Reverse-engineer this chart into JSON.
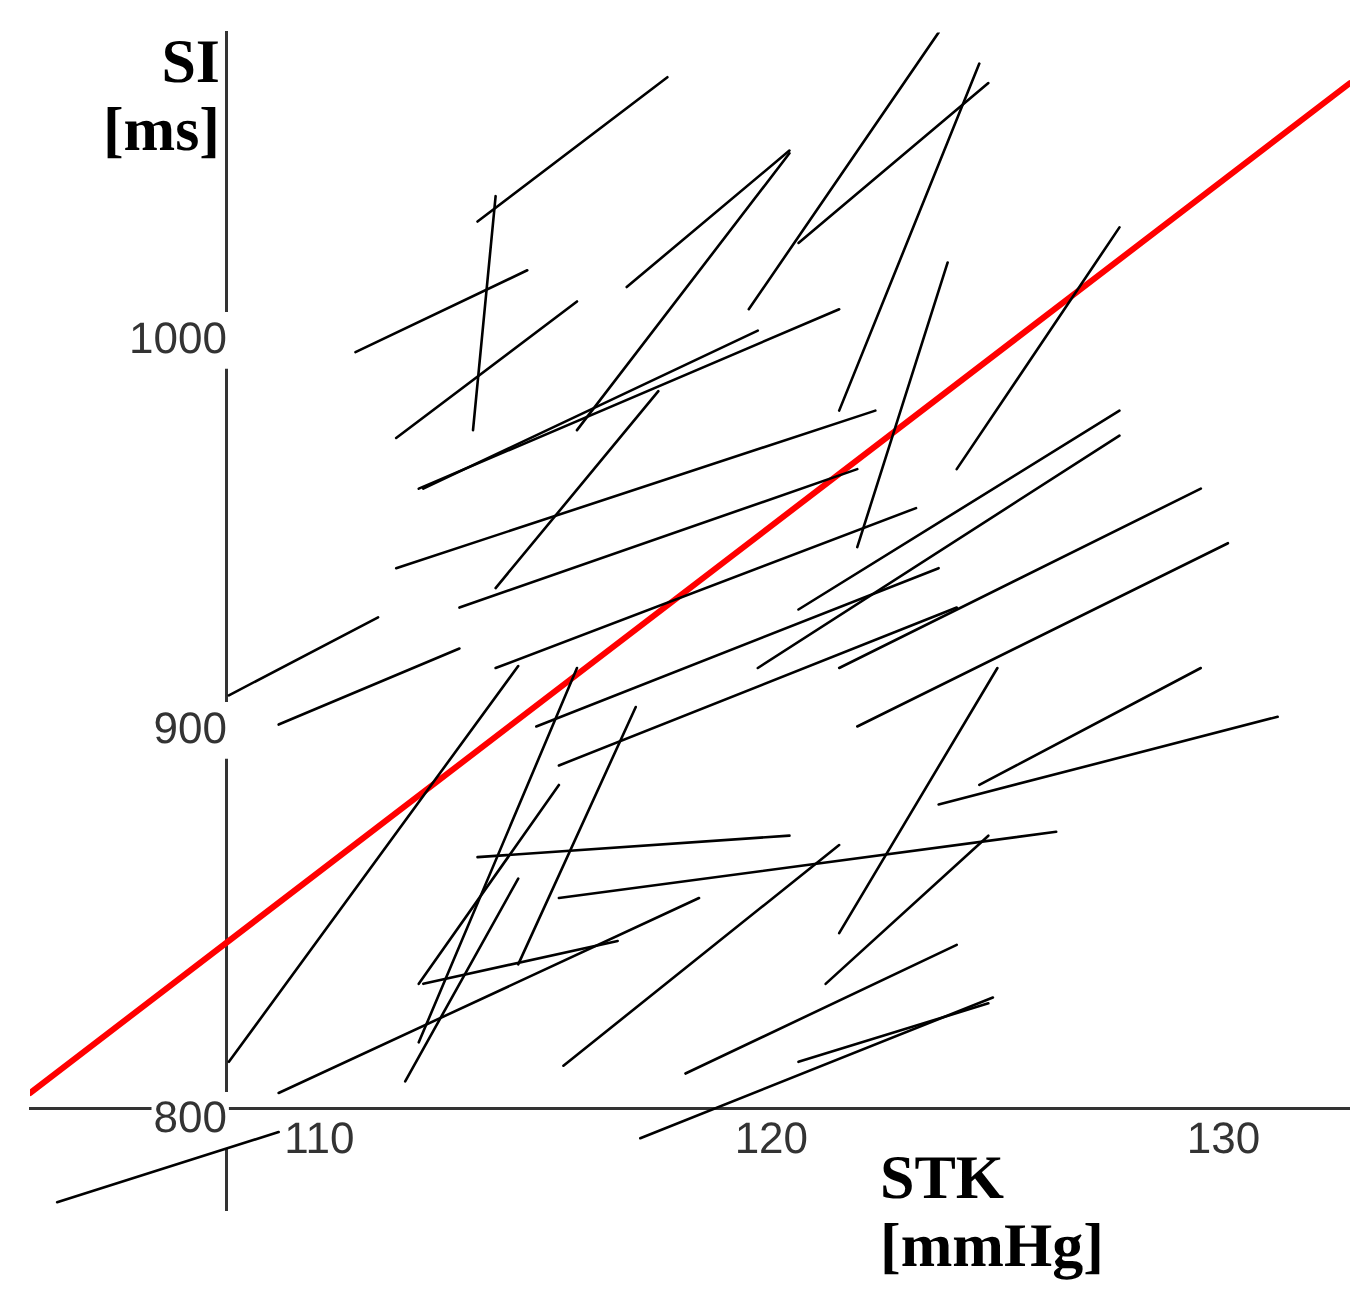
{
  "chart_data": {
    "type": "line",
    "xlabel": "STK [mmHg]",
    "ylabel": "SI [ms]",
    "xlim": [
      103.6,
      132.8
    ],
    "ylim": [
      777,
      1079
    ],
    "xticks": [
      110,
      120,
      130
    ],
    "yticks": [
      800,
      900,
      1000
    ],
    "grid": false,
    "legend": false,
    "marker": "none",
    "line_style": "solid",
    "series": [
      {
        "color": "#000000",
        "x": [
          113.5,
          117.7
        ],
        "values": [
          1030.5,
          1067.5
        ]
      },
      {
        "color": "#000000",
        "x": [
          110.8,
          114.6
        ],
        "values": [
          997,
          1018
        ]
      },
      {
        "color": "#000000",
        "x": [
          113.9,
          113.4
        ],
        "values": [
          1037,
          977
        ]
      },
      {
        "color": "#000000",
        "x": [
          123.7,
          119.5
        ],
        "values": [
          1079,
          1008
        ]
      },
      {
        "color": "#000000",
        "x": [
          124.6,
          121.5
        ],
        "values": [
          1071,
          982
        ]
      },
      {
        "color": "#000000",
        "x": [
          124.8,
          120.6
        ],
        "values": [
          1066,
          1025
        ]
      },
      {
        "color": "#000000",
        "x": [
          120.4,
          115.7
        ],
        "values": [
          1048,
          977
        ]
      },
      {
        "color": "#000000",
        "x": [
          127.7,
          124.1
        ],
        "values": [
          1029,
          967
        ]
      },
      {
        "color": "#000000",
        "x": [
          111.7,
          115.7
        ],
        "values": [
          975,
          1010
        ]
      },
      {
        "color": "#000000",
        "x": [
          123.9,
          121.9
        ],
        "values": [
          1020,
          947
        ]
      },
      {
        "color": "#000000",
        "x": [
          112.2,
          121.5
        ],
        "values": [
          962,
          1008
        ]
      },
      {
        "color": "#000000",
        "x": [
          129.5,
          121.5
        ],
        "values": [
          962,
          916
        ]
      },
      {
        "color": "#000000",
        "x": [
          130.1,
          121.9
        ],
        "values": [
          948,
          901
        ]
      },
      {
        "color": "#000000",
        "x": [
          127.7,
          120.6
        ],
        "values": [
          982,
          931
        ]
      },
      {
        "color": "#000000",
        "x": [
          131.2,
          123.7
        ],
        "values": [
          903.5,
          881
        ]
      },
      {
        "color": "#000000",
        "x": [
          129.5,
          124.6
        ],
        "values": [
          916,
          886
        ]
      },
      {
        "color": "#000000",
        "x": [
          108,
          111.3
        ],
        "values": [
          909,
          929
        ]
      },
      {
        "color": "#000000",
        "x": [
          109.1,
          113.1
        ],
        "values": [
          901.5,
          921
        ]
      },
      {
        "color": "#000000",
        "x": [
          108,
          114.4
        ],
        "values": [
          815,
          916.5
        ]
      },
      {
        "color": "#000000",
        "x": [
          109.1,
          118.4
        ],
        "values": [
          807,
          857
        ]
      },
      {
        "color": "#000000",
        "x": [
          111.9,
          114.4
        ],
        "values": [
          810,
          862
        ]
      },
      {
        "color": "#000000",
        "x": [
          112.2,
          115.3
        ],
        "values": [
          835,
          886
        ]
      },
      {
        "color": "#000000",
        "x": [
          112.3,
          116.6
        ],
        "values": [
          835,
          846
        ]
      },
      {
        "color": "#000000",
        "x": [
          115.4,
          121.5
        ],
        "values": [
          814,
          870.6
        ]
      },
      {
        "color": "#000000",
        "x": [
          118.1,
          124.1
        ],
        "values": [
          812,
          845
        ]
      },
      {
        "color": "#000000",
        "x": [
          120.6,
          124.8
        ],
        "values": [
          815,
          830
        ]
      },
      {
        "color": "#000000",
        "x": [
          117.1,
          124.9
        ],
        "values": [
          795.4,
          831.5
        ]
      },
      {
        "color": "#000000",
        "x": [
          104.2,
          109.1
        ],
        "values": [
          779,
          797
        ]
      },
      {
        "color": "#000000",
        "x": [
          121.2,
          124.8
        ],
        "values": [
          835,
          873
        ]
      },
      {
        "color": "#000000",
        "x": [
          115.3,
          126.3
        ],
        "values": [
          857,
          874
        ]
      },
      {
        "color": "#000000",
        "x": [
          113.5,
          120.4
        ],
        "values": [
          867.5,
          873
        ]
      },
      {
        "color": "#000000",
        "x": [
          127.7,
          119.7
        ],
        "values": [
          975.6,
          916
        ]
      },
      {
        "color": "#000000",
        "x": [
          112.3,
          119.7
        ],
        "values": [
          962,
          1002.5
        ]
      },
      {
        "color": "#000000",
        "x": [
          111.7,
          122.3
        ],
        "values": [
          941.6,
          982
        ]
      },
      {
        "color": "#000000",
        "x": [
          113.1,
          121.9
        ],
        "values": [
          931.5,
          967
        ]
      },
      {
        "color": "#000000",
        "x": [
          113.9,
          123.2
        ],
        "values": [
          916,
          957
        ]
      },
      {
        "color": "#000000",
        "x": [
          114.8,
          123.7
        ],
        "values": [
          901,
          941.6
        ]
      },
      {
        "color": "#000000",
        "x": [
          115.3,
          124.1
        ],
        "values": [
          891,
          931.5
        ]
      },
      {
        "color": "#000000",
        "x": [
          112.2,
          115.7
        ],
        "values": [
          820,
          916
        ]
      },
      {
        "color": "#000000",
        "x": [
          114.4,
          117
        ],
        "values": [
          840,
          906
        ]
      },
      {
        "color": "#000000",
        "x": [
          121.5,
          125
        ],
        "values": [
          848,
          916
        ]
      },
      {
        "color": "#000000",
        "x": [
          116.8,
          120.4
        ],
        "values": [
          1013.7,
          1048.7
        ]
      },
      {
        "color": "#000000",
        "x": [
          113.9,
          117.5
        ],
        "values": [
          936.5,
          987
        ]
      },
      {
        "color": "#ff0000",
        "x": [
          103.6,
          132.8
        ],
        "values": [
          807,
          1066
        ]
      }
    ]
  }
}
